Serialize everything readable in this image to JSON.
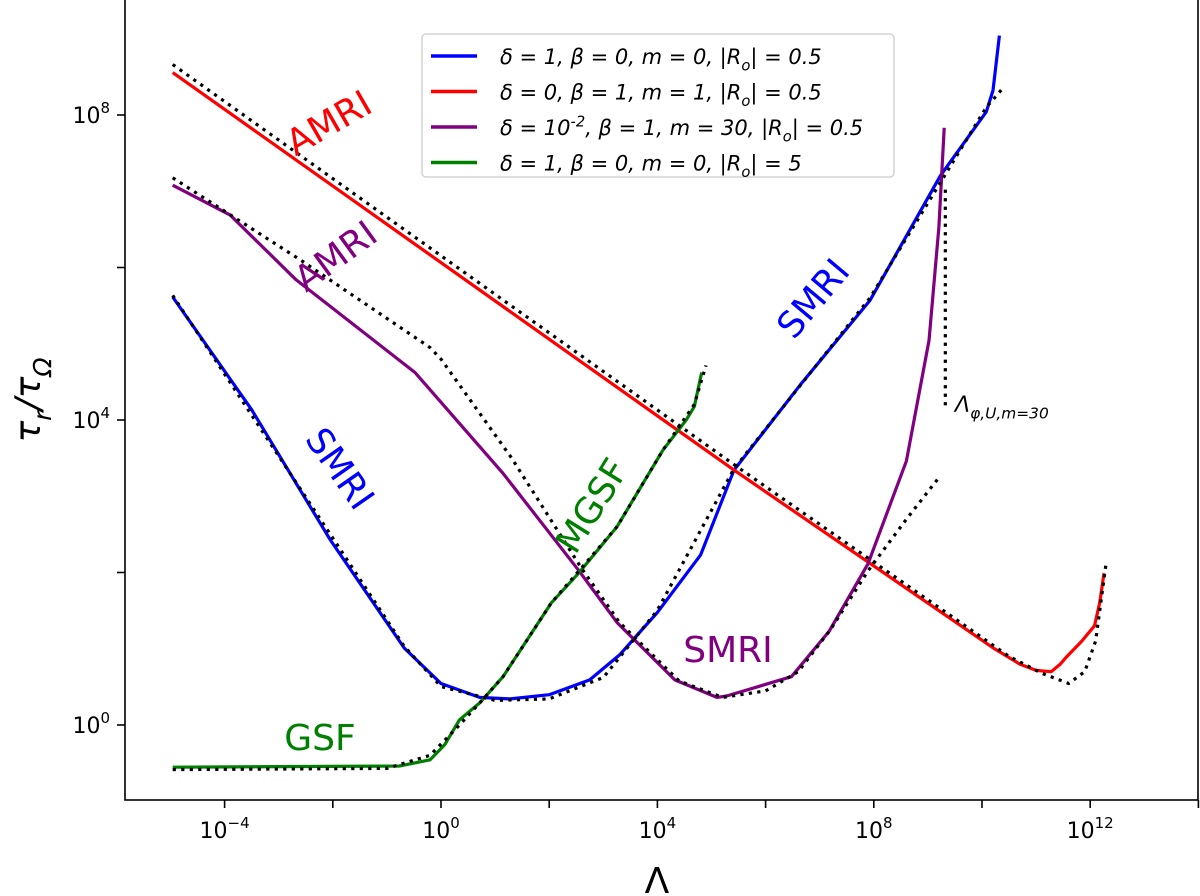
{
  "chart_data": {
    "type": "line",
    "xlabel": "Λ",
    "ylabel": "τ_r/τ_Ω",
    "xscale": "log",
    "yscale": "log",
    "xlim": [
      1.5e-06,
      100000000000000.0
    ],
    "ylim": [
      0.105,
      3200000000.0
    ],
    "grid": false,
    "legend_position": "top-center",
    "x_ticks": [
      {
        "value": 0.0001,
        "base": "10",
        "exp": "−4"
      },
      {
        "value": 1,
        "base": "10",
        "exp": "0"
      },
      {
        "value": 10000.0,
        "base": "10",
        "exp": "4"
      },
      {
        "value": 100000000.0,
        "base": "10",
        "exp": "8"
      },
      {
        "value": 1000000000000.0,
        "base": "10",
        "exp": "12"
      }
    ],
    "x_minor_ticks": [
      0.01,
      100.0,
      1000000.0,
      10000000000.0,
      100000000000000.0
    ],
    "y_ticks": [
      {
        "value": 1,
        "base": "10",
        "exp": "0"
      },
      {
        "value": 10000.0,
        "base": "10",
        "exp": "4"
      },
      {
        "value": 100000000.0,
        "base": "10",
        "exp": "8"
      }
    ],
    "y_minor_ticks": [
      100.0,
      1000000.0
    ],
    "series": [
      {
        "name": "δ=1, β=0, m=0, |R_o|=0.5",
        "color": "#0000ff",
        "x": [
          1.1e-05,
          0.00032,
          0.0089,
          0.21,
          1,
          5.2,
          19,
          100,
          560,
          2000,
          10000.0,
          63000.0,
          260000.0,
          4400000.0,
          85000000.0,
          1700000000.0,
          12000000000.0,
          16000000000.0,
          21000000000.0
        ],
        "y": [
          410000.0,
          13500.0,
          270,
          10.2,
          3.5,
          2.3,
          2.2,
          2.5,
          3.9,
          8.3,
          30,
          170,
          2200,
          29000.0,
          370000.0,
          16000000.0,
          110000000.0,
          210000000.0,
          1100000000.0
        ],
        "asymptote": {
          "x": [
            1.1e-05,
            0.21,
            1,
            10,
            100,
            1000,
            10000.0,
            260000.0,
            85000000.0,
            12000000000.0,
            25000000000.0
          ],
          "y": [
            430000.0,
            10.7,
            3.2,
            2.1,
            2.2,
            4.2,
            32,
            2300,
            400000.0,
            126000000.0,
            230000000.0
          ]
        }
      },
      {
        "name": "δ=0, β=1, m=1, |R_o|=0.5",
        "color": "#ff0000",
        "x": [
          1.1e-05,
          260000.0,
          17000000000.0,
          50000000000.0,
          100000000000.0,
          190000000000.0,
          280000000000.0,
          370000000000.0,
          700000000000.0,
          1200000000000.0,
          1500000000000.0,
          1800000000000.0
        ],
        "y": [
          360000000.0,
          2200,
          10,
          6.3,
          5.2,
          5,
          6.3,
          7.9,
          12.6,
          20,
          40,
          98
        ],
        "asymptote": {
          "x": [
            1.1e-05,
            260000.0,
            32000000000.0,
            126000000000.0,
            400000000000.0,
            790000000000.0,
            1260000000000.0,
            1950000000000.0
          ],
          "y": [
            460000000.0,
            2600,
            7.9,
            4.8,
            3.5,
            5,
            12.6,
            126
          ]
        }
      },
      {
        "name": "δ=10^{-2}, β=1, m=30, |R_o|=0.5",
        "color": "#800080",
        "x": [
          1.1e-05,
          0.000126,
          0.0021,
          0.33,
          14,
          350,
          1800,
          21000.0,
          126000.0,
          190000.0,
          3000000.0,
          15000000.0,
          78000000.0,
          400000000.0,
          1050000000.0,
          1600000000.0,
          2000000000.0
        ],
        "y": [
          12000000.0,
          4900000.0,
          690000.0,
          42000.0,
          2000,
          107,
          22,
          3.9,
          2.3,
          2.4,
          4.3,
          17,
          130,
          2900,
          110000.0,
          3400000.0,
          68000000.0
        ],
        "asymptote": {
          "x": [
            1.1e-05,
            0.0025,
            0.63,
            1,
            20,
            400,
            2000,
            25000.0,
            160000.0,
            1000000.0,
            4000000.0,
            16000000.0,
            78000000.0,
            400000000.0,
            1700000000.0
          ],
          "y": [
            15000000.0,
            1260000.0,
            89000.0,
            63000.0,
            3200,
            112,
            22,
            3.8,
            2.3,
            2.8,
            5,
            18,
            105,
            500,
            1860
          ]
        },
        "vertical_asymptote": {
          "x": 2100000000.0,
          "y": [
            13500.0,
            10500000.0
          ],
          "label": "Λ_{φ,U,m=30}"
        }
      },
      {
        "name": "δ=1, β=0, m=0, |R_o|=5",
        "color": "#008000",
        "x": [
          1.1e-05,
          0.17,
          0.63,
          1.17,
          2.2,
          5.2,
          14,
          110,
          350,
          1800,
          12600.0,
          34000.0,
          48000.0,
          66000.0
        ],
        "y": [
          0.28,
          0.29,
          0.35,
          0.55,
          1.17,
          1.95,
          4.3,
          40,
          98,
          400,
          4000,
          10000.0,
          15000.0,
          42000.0
        ],
        "asymptote": {
          "x": [
            1.1e-05,
            0.1,
            0.63,
            2.2,
            5.2,
            14,
            110,
            1800,
            12600.0,
            48000.0,
            79000.0
          ],
          "y": [
            0.26,
            0.27,
            0.4,
            1.0,
            1.95,
            4.3,
            40,
            400,
            4000,
            16000.0,
            52000.0
          ]
        }
      }
    ],
    "annotations": [
      {
        "text": "AMRI",
        "color": "#ff0000"
      },
      {
        "text": "AMRI",
        "color": "#800080"
      },
      {
        "text": "SMRI",
        "color": "#0000ff"
      },
      {
        "text": "GSF",
        "color": "#008000"
      },
      {
        "text": "MGSF",
        "color": "#008000"
      },
      {
        "text": "SMRI",
        "color": "#0000ff"
      },
      {
        "text": "SMRI",
        "color": "#800080"
      }
    ]
  }
}
